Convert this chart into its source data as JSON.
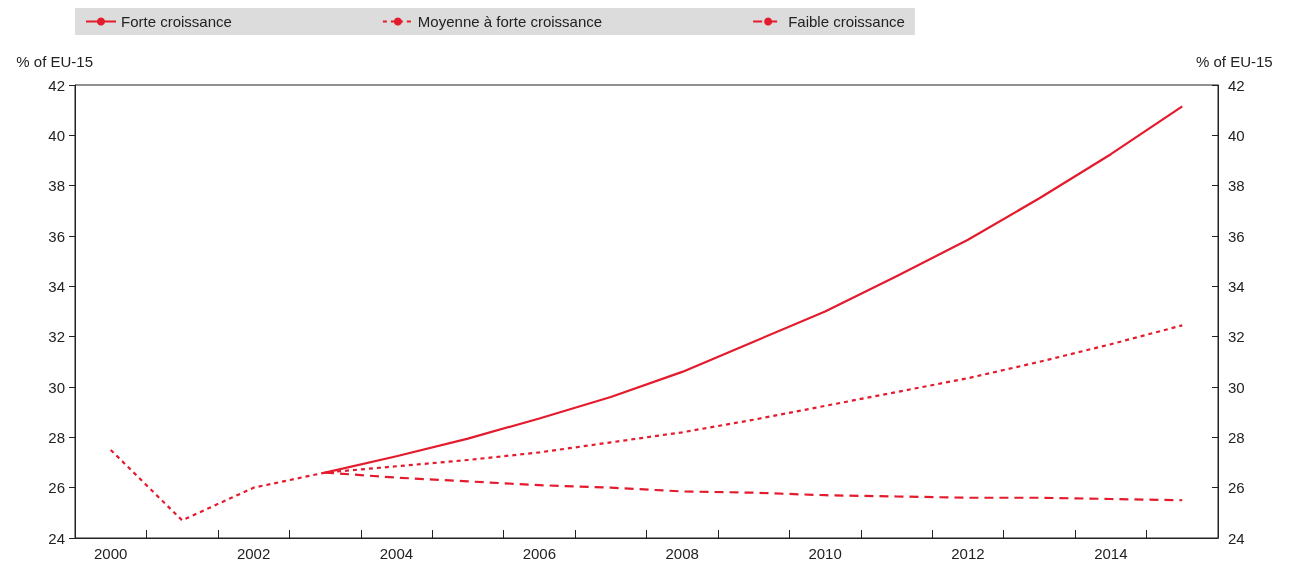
{
  "chart_data": {
    "type": "line",
    "categories": [
      "2000",
      null,
      "2002",
      null,
      "2004",
      null,
      "2006",
      null,
      "2008",
      null,
      "2010",
      null,
      "2012",
      null,
      "2014",
      null
    ],
    "series": [
      {
        "name": "Forte croissance",
        "color": "#e31b2c",
        "line_style": "solid",
        "values": [
          null,
          null,
          null,
          26.6,
          27.25,
          27.95,
          28.75,
          29.6,
          30.6,
          31.8,
          33.0,
          34.4,
          35.85,
          37.5,
          39.25,
          41.15
        ]
      },
      {
        "name": "Moyenne à forte croissance",
        "color": "#e31b2c",
        "line_style": "dotted",
        "values": [
          27.5,
          24.7,
          26.0,
          26.6,
          26.85,
          27.1,
          27.4,
          27.8,
          28.2,
          28.7,
          29.25,
          29.8,
          30.35,
          31.0,
          31.7,
          32.45
        ]
      },
      {
        "name": "Faible croissance",
        "color": "#e31b2c",
        "line_style": "dashed",
        "values": [
          null,
          null,
          null,
          26.6,
          26.4,
          26.25,
          26.1,
          26.0,
          25.85,
          25.8,
          25.7,
          25.65,
          25.6,
          25.6,
          25.55,
          25.5
        ]
      }
    ],
    "ylabel": "% of EU-15",
    "y2label": "% of EU-15",
    "ylim": [
      24,
      42
    ],
    "yticks": [
      24,
      26,
      28,
      30,
      32,
      34,
      36,
      38,
      40,
      42
    ],
    "y2lim": [
      24,
      42
    ],
    "y2ticks": [
      24,
      26,
      28,
      30,
      32,
      34,
      36,
      38,
      40,
      42
    ],
    "legend": "top",
    "grid": false,
    "marker": "none"
  }
}
